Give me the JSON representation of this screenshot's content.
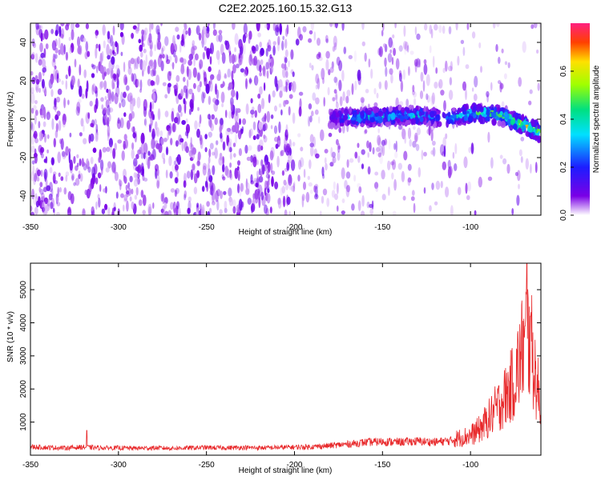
{
  "figure_title": "C2E2.2025.160.15.32.G13",
  "chart_data": [
    {
      "type": "heatmap",
      "xlabel": "Height of straight line (km)",
      "ylabel": "Frequency (Hz)",
      "xlim": [
        -350,
        -60
      ],
      "ylim": [
        -50,
        50
      ],
      "x_ticks": [
        -350,
        -300,
        -250,
        -200,
        -150,
        -100
      ],
      "y_ticks": [
        -40,
        -20,
        0,
        20,
        40
      ],
      "grid": false,
      "colorbar": {
        "label": "Normalized spectral amplitude",
        "range": [
          0,
          0.8
        ],
        "ticks": [
          0.0,
          0.2,
          0.4,
          0.6
        ],
        "tick_labels": [
          "0.0",
          "0.2",
          "0.4",
          "0.6"
        ]
      },
      "signal_track": {
        "description": "frequency of the strong signal stripe",
        "x": [
          -180,
          -170,
          -160,
          -150,
          -140,
          -130,
          -120,
          -110,
          -100,
          -90,
          -80,
          -70,
          -60
        ],
        "frequency_hz": [
          0,
          1,
          1,
          1,
          2,
          2,
          1,
          1,
          3,
          3,
          1,
          -3,
          -7
        ],
        "peak_amplitude": [
          0.15,
          0.35,
          0.4,
          0.4,
          0.35,
          0.4,
          0.25,
          0.35,
          0.45,
          0.5,
          0.55,
          0.65,
          0.6
        ]
      },
      "noise_field": {
        "description": "purple speckle covering the panel, densest at heights below -200 km",
        "dense_region_x": [
          -350,
          -200
        ],
        "sparse_region_x": [
          -200,
          -60
        ],
        "typical_amplitude": 0.08
      }
    },
    {
      "type": "line",
      "xlabel": "Height of straight line (km)",
      "ylabel": "SNR (10 * v/v)",
      "xlim": [
        -350,
        -60
      ],
      "ylim": [
        0,
        5800
      ],
      "x_ticks": [
        -350,
        -300,
        -250,
        -200,
        -150,
        -100
      ],
      "y_ticks": [
        1000,
        2000,
        3000,
        4000,
        5000
      ],
      "grid": false,
      "line_color": "#e8292b",
      "series": [
        {
          "x": [
            -350,
            -340,
            -330,
            -320,
            -310,
            -300,
            -290,
            -280,
            -270,
            -260,
            -250,
            -240,
            -230,
            -220,
            -210,
            -200,
            -190,
            -180,
            -170,
            -160,
            -150,
            -140,
            -130,
            -120,
            -110,
            -100,
            -95,
            -90,
            -85,
            -80,
            -75,
            -72,
            -70,
            -68,
            -65,
            -62,
            -60
          ],
          "y": [
            230,
            210,
            200,
            220,
            200,
            200,
            190,
            200,
            190,
            200,
            210,
            200,
            210,
            200,
            210,
            220,
            230,
            260,
            300,
            350,
            370,
            360,
            380,
            360,
            400,
            500,
            650,
            900,
            1200,
            1500,
            1900,
            2400,
            2800,
            3100,
            2600,
            1700,
            1200
          ],
          "spikes": [
            {
              "x": -318,
              "y": 750
            },
            {
              "x": -68,
              "y": 5800
            },
            {
              "x": -66,
              "y": 4200
            },
            {
              "x": -69,
              "y": 3900
            }
          ]
        }
      ]
    }
  ]
}
